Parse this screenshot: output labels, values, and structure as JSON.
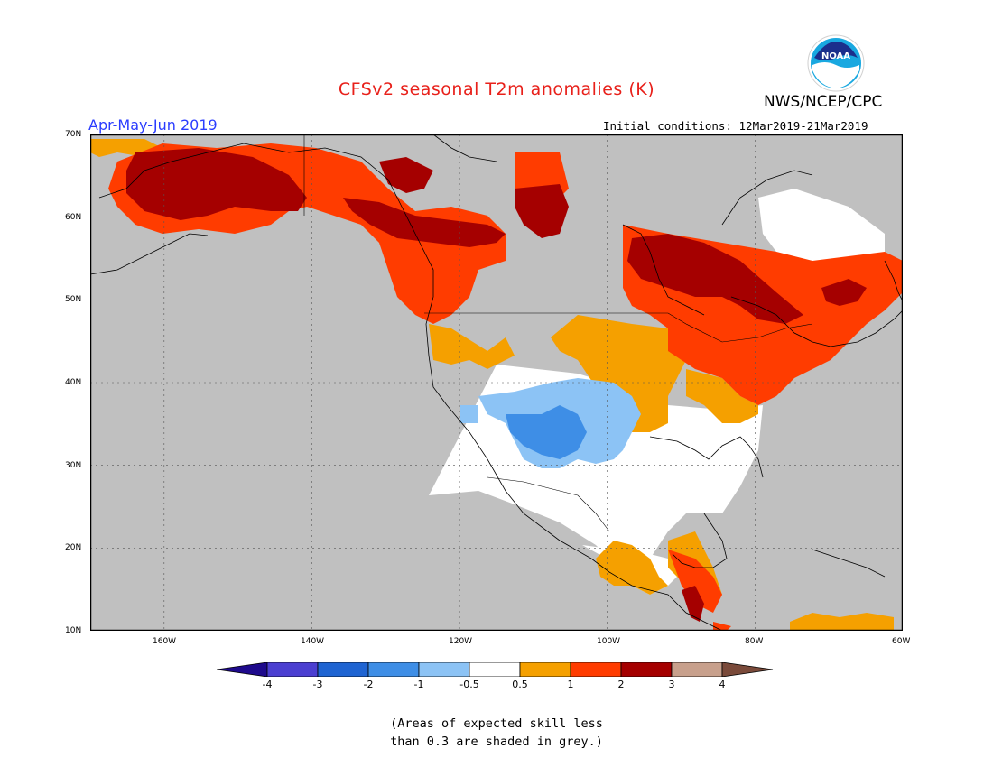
{
  "title": "CFSv2 seasonal T2m anomalies (K)",
  "organization": "NWS/NCEP/CPC",
  "logo_text": "NOAA",
  "period": "Apr-May-Jun 2019",
  "initial_conditions": "Initial conditions: 12Mar2019-21Mar2019",
  "map": {
    "lat_labels": [
      "70N",
      "60N",
      "50N",
      "40N",
      "30N",
      "20N",
      "10N"
    ],
    "lon_labels": [
      "160W",
      "140W",
      "120W",
      "100W",
      "80W",
      "60W"
    ],
    "lat_range": [
      10,
      70
    ],
    "lon_range": [
      -170,
      -60
    ],
    "grid": true,
    "colors": {
      "ocean": "#c0c0c0",
      "land_low_skill": "#c0c0c0",
      "neutral": "#ffffff",
      "coast": "#000000"
    }
  },
  "colorbar": {
    "labels": [
      "-4",
      "-3",
      "-2",
      "-1",
      "-0.5",
      "0.5",
      "1",
      "2",
      "3",
      "4"
    ],
    "colors": [
      "#1e0a8c",
      "#4b3fd1",
      "#1f64d2",
      "#3e8ee6",
      "#8cc3f5",
      "#ffffff",
      "#f5a000",
      "#ff3c00",
      "#a50000",
      "#c8a08c",
      "#7a4a3a"
    ]
  },
  "note_lines": [
    "(Areas of expected skill less",
    "than 0.3 are shaded in grey.)"
  ]
}
